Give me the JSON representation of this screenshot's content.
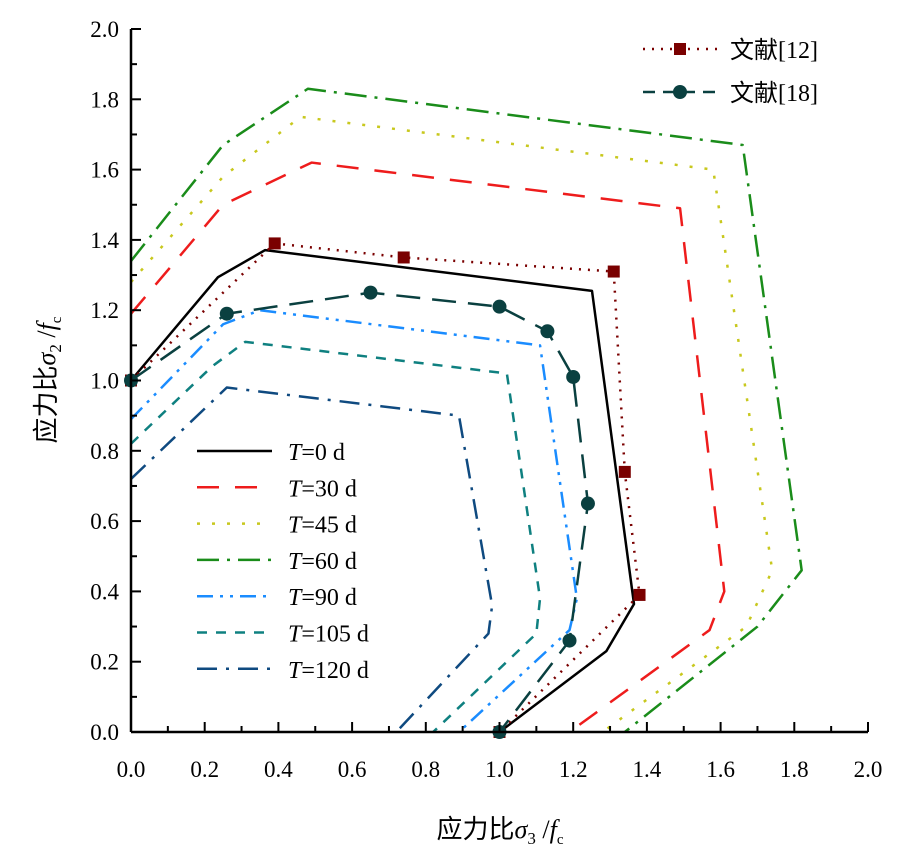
{
  "chart_data": {
    "type": "line",
    "xlabel": {
      "prefix": "应力比",
      "sym": "σ",
      "sub": "3",
      "mid": " /",
      "f": "f",
      "fsub": "c"
    },
    "ylabel": {
      "prefix": "应力比",
      "sym": "σ",
      "sub": "2",
      "mid": " /",
      "f": "f",
      "fsub": "c"
    },
    "xlim": [
      0,
      2.0
    ],
    "ylim": [
      0,
      2.0
    ],
    "xticks": [
      "0.0",
      "0.2",
      "0.4",
      "0.6",
      "0.8",
      "1.0",
      "1.2",
      "1.4",
      "1.6",
      "1.8",
      "2.0"
    ],
    "yticks": [
      "0.0",
      "0.2",
      "0.4",
      "0.6",
      "0.8",
      "1.0",
      "1.2",
      "1.4",
      "1.6",
      "1.8",
      "2.0"
    ],
    "grid": false,
    "series": [
      {
        "name": "T=0 d",
        "label_T": "T",
        "label_rest": "=0 d",
        "color": "#000000",
        "dash": "",
        "legend": "left",
        "x": [
          0,
          0.236,
          0.364,
          1.251,
          1.365,
          1.29,
          1.0
        ],
        "y": [
          1.0,
          1.294,
          1.371,
          1.255,
          0.364,
          0.23,
          0
        ]
      },
      {
        "name": "T=30 d",
        "label_T": "T",
        "label_rest": "=30 d",
        "color": "#ee1c1c",
        "dash": "22,16",
        "legend": "left",
        "x": [
          0,
          0.25,
          0.49,
          1.49,
          1.61,
          1.57,
          1.19
        ],
        "y": [
          1.19,
          1.5,
          1.62,
          1.49,
          0.4,
          0.29,
          0
        ]
      },
      {
        "name": "T=45 d",
        "label_T": "T",
        "label_rest": "=45 d",
        "color": "#c8c81e",
        "dash": "3,12",
        "legend": "left",
        "x": [
          0,
          0.25,
          0.46,
          1.58,
          1.74,
          1.67,
          1.28
        ],
        "y": [
          1.28,
          1.58,
          1.75,
          1.6,
          0.46,
          0.3,
          0
        ]
      },
      {
        "name": "T=60 d",
        "label_T": "T",
        "label_rest": "=60 d",
        "color": "#1a8c1a",
        "dash": "22,8,3,8",
        "legend": "left",
        "x": [
          0,
          0.25,
          0.48,
          1.66,
          1.82,
          1.7,
          1.34
        ],
        "y": [
          1.34,
          1.67,
          1.83,
          1.67,
          0.46,
          0.3,
          0
        ]
      },
      {
        "name": "T=90 d",
        "label_T": "T",
        "label_rest": "=90 d",
        "color": "#1a8cff",
        "dash": "16,7,3,7,3,7",
        "legend": "left",
        "x": [
          0,
          0.25,
          0.35,
          1.11,
          1.21,
          1.19,
          0.89
        ],
        "y": [
          0.89,
          1.16,
          1.2,
          1.1,
          0.38,
          0.29,
          0
        ]
      },
      {
        "name": "T=105 d",
        "label_T": "T",
        "label_rest": "=105 d",
        "color": "#0f8080",
        "dash": "10,9",
        "legend": "left",
        "x": [
          0,
          0.22,
          0.31,
          1.02,
          1.11,
          1.1,
          0.82
        ],
        "y": [
          0.82,
          1.04,
          1.11,
          1.02,
          0.38,
          0.28,
          0
        ]
      },
      {
        "name": "T=120 d",
        "label_T": "T",
        "label_rest": "=120 d",
        "color": "#0f4a80",
        "dash": "20,9,3,9",
        "legend": "left",
        "x": [
          0,
          0.26,
          0.89,
          0.98,
          0.97,
          0.72
        ],
        "y": [
          0.72,
          0.98,
          0.9,
          0.36,
          0.28,
          0
        ]
      },
      {
        "name": "文献[12]",
        "color": "#7a0000",
        "dash": "2,7",
        "marker": "square",
        "legend": "right",
        "x": [
          0,
          0.39,
          0.74,
          1.31,
          1.34,
          1.38,
          1.0
        ],
        "y": [
          1.0,
          1.39,
          1.35,
          1.31,
          0.74,
          0.39,
          0
        ]
      },
      {
        "name": "文献[18]",
        "color": "#0a4040",
        "dash": "24,12",
        "marker": "circle",
        "legend": "right",
        "x": [
          0,
          0.26,
          0.65,
          1.0,
          1.13,
          1.2,
          1.24,
          1.19,
          1.0
        ],
        "y": [
          1.0,
          1.19,
          1.25,
          1.21,
          1.14,
          1.01,
          0.65,
          0.26,
          0
        ]
      }
    ]
  }
}
